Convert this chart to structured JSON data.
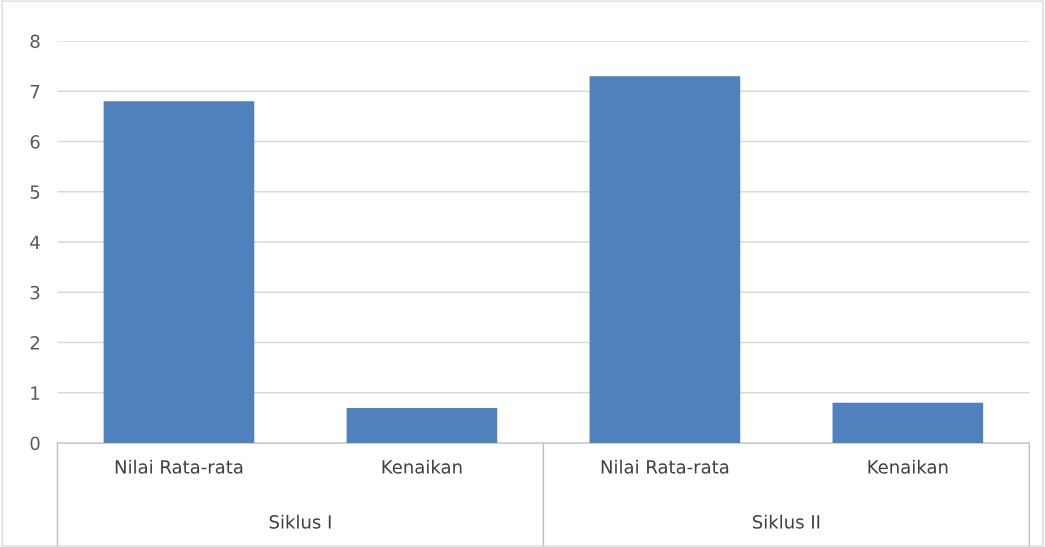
{
  "chart_data": {
    "type": "bar",
    "categories": [
      "Nilai Rata-rata",
      "Kenaikan",
      "Nilai Rata-rata",
      "Kenaikan"
    ],
    "values": [
      6.8,
      0.7,
      7.3,
      0.8
    ],
    "color": "#4f81bd",
    "ylim": [
      0,
      8
    ],
    "yticks": [
      0,
      1,
      2,
      3,
      4,
      5,
      6,
      7,
      8
    ],
    "grid": "y",
    "annotations": [
      "Siklus I",
      "Siklus II"
    ]
  }
}
